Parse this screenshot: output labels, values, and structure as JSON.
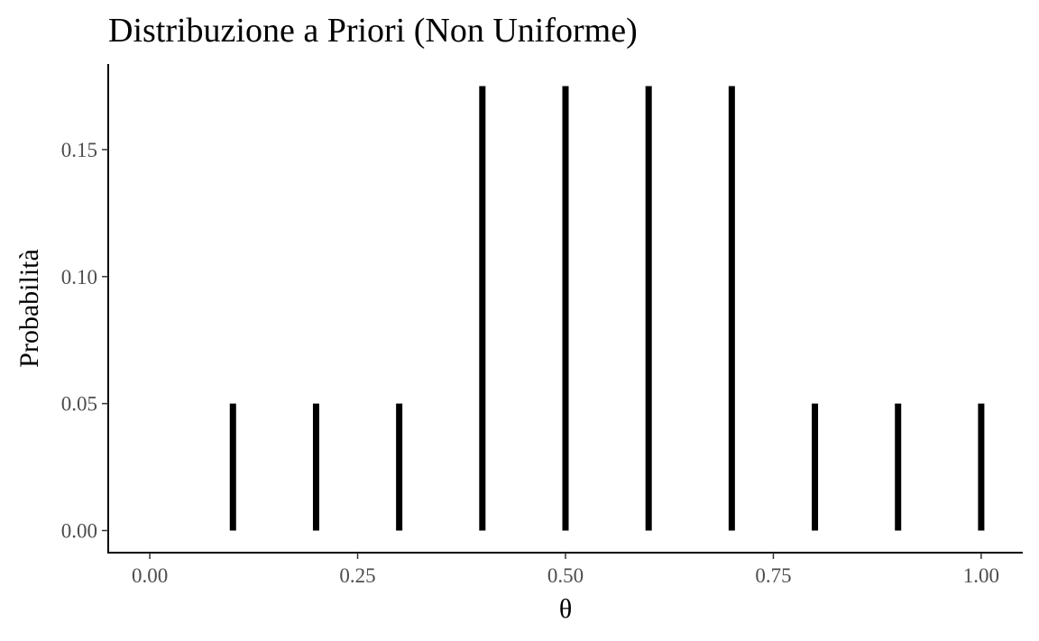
{
  "chart_data": {
    "type": "bar",
    "title": "Distribuzione a Priori (Non Uniforme)",
    "xlabel": "θ",
    "ylabel": "Probabilità",
    "x": [
      0.1,
      0.2,
      0.3,
      0.4,
      0.5,
      0.6,
      0.7,
      0.8,
      0.9,
      1.0
    ],
    "values": [
      0.05,
      0.05,
      0.05,
      0.175,
      0.175,
      0.175,
      0.175,
      0.05,
      0.05,
      0.05
    ],
    "xlim": [
      -0.05,
      1.05
    ],
    "ylim": [
      -0.0087,
      0.1837
    ],
    "x_ticks": [
      {
        "value": 0.0,
        "label": "0.00"
      },
      {
        "value": 0.25,
        "label": "0.25"
      },
      {
        "value": 0.5,
        "label": "0.50"
      },
      {
        "value": 0.75,
        "label": "0.75"
      },
      {
        "value": 1.0,
        "label": "1.00"
      }
    ],
    "y_ticks": [
      {
        "value": 0.0,
        "label": "0.00"
      },
      {
        "value": 0.05,
        "label": "0.05"
      },
      {
        "value": 0.1,
        "label": "0.10"
      },
      {
        "value": 0.15,
        "label": "0.15"
      }
    ],
    "grid": false,
    "bar_color": "#000000"
  }
}
